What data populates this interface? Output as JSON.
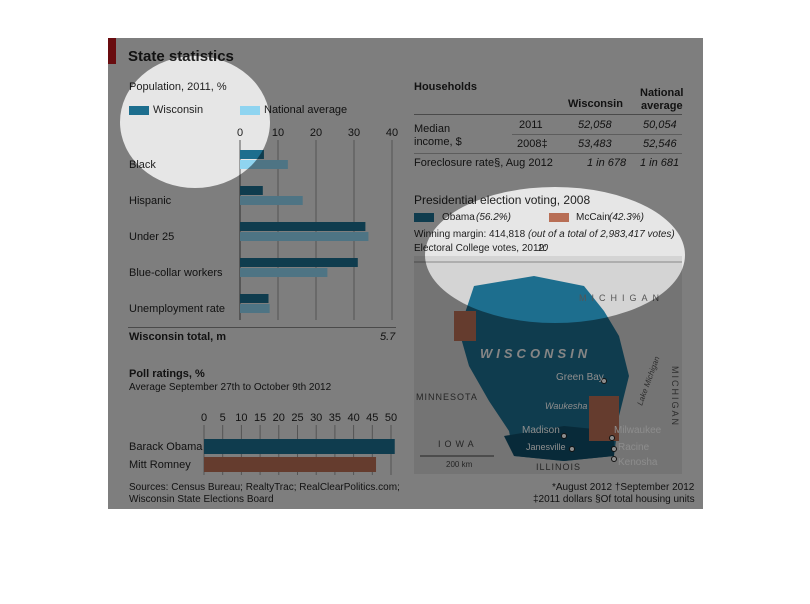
{
  "title": "State statistics",
  "population": {
    "subtitle": "Population, 2011, %",
    "legend": {
      "wisconsin": "Wisconsin",
      "national": "National average"
    },
    "ticks": [
      "0",
      "10",
      "20",
      "30",
      "40"
    ],
    "total_label": "Wisconsin total, m",
    "total_value": "5.7"
  },
  "households": {
    "title": "Households",
    "col_wisconsin": "Wisconsin",
    "col_national_1": "National",
    "col_national_2": "average",
    "median_label_1": "Median",
    "median_label_2": "income, $",
    "rows": [
      {
        "year": "2011",
        "wisconsin": "52,058",
        "national": "50,054"
      },
      {
        "year": "2008‡",
        "wisconsin": "53,483",
        "national": "52,546"
      }
    ],
    "foreclosure_label": "Foreclosure rate§, Aug 2012",
    "foreclosure_wisconsin": "1 in 678",
    "foreclosure_national": "1 in 681"
  },
  "election": {
    "title": "Presidential election voting, 2008",
    "obama": "Obama",
    "obama_pct": "(56.2%)",
    "mccain": "McCain",
    "mccain_pct": "(42.3%)",
    "margin": "Winning margin: 414,818",
    "margin_note": "(out of a total of 2,983,417 votes)",
    "college": "Electoral College votes, 2012:",
    "college_value": "10"
  },
  "map": {
    "lake_superior": "MICHIGAN",
    "state": "WISCONSIN",
    "minnesota": "MINNESOTA",
    "iowa": "IOWA",
    "illinois": "ILLINOIS",
    "lake_michigan": "Lake Michigan",
    "michigan_side": "MICHIGAN",
    "scale": "200 km",
    "cities": [
      "Green Bay",
      "Waukesha",
      "Madison",
      "Milwaukee",
      "Janesville",
      "Racine",
      "Kenosha"
    ]
  },
  "poll": {
    "title": "Poll ratings, %",
    "subtitle": "Average September 27th to October 9th 2012",
    "ticks": [
      "0",
      "5",
      "10",
      "15",
      "20",
      "25",
      "30",
      "35",
      "40",
      "45",
      "50"
    ]
  },
  "footer": {
    "sources_1": "Sources: Census Bureau; RealtyTrac; RealClearPolitics.com;",
    "sources_2": "Wisconsin State Elections Board",
    "note_1": "*August 2012   †September 2012",
    "note_2": "‡2011 dollars   §Of total housing units"
  },
  "colors": {
    "wisconsin": "#1d6e8e",
    "national": "#8fd4f0",
    "obama": "#1d6e8e",
    "mccain": "#b86e55",
    "panel": "#e6e6e6",
    "accent": "#c0161d"
  },
  "chart_data": [
    {
      "type": "bar",
      "title": "Population, 2011, %",
      "categories": [
        "Black",
        "Hispanic",
        "Under 25",
        "Blue-collar workers",
        "Unemployment rate"
      ],
      "series": [
        {
          "name": "Wisconsin",
          "values": [
            6.3,
            6.0,
            33.0,
            31.0,
            7.5
          ]
        },
        {
          "name": "National average",
          "values": [
            12.6,
            16.5,
            33.8,
            23.0,
            7.8
          ]
        }
      ],
      "xlim": [
        0,
        40
      ],
      "orientation": "horizontal",
      "legend": "top"
    },
    {
      "type": "bar",
      "title": "Poll ratings, %",
      "subtitle": "Average September 27th to October 9th 2012",
      "categories": [
        "Barack Obama",
        "Mitt Romney"
      ],
      "values": [
        51.0,
        46.0
      ],
      "xlim": [
        0,
        50
      ],
      "orientation": "horizontal"
    }
  ]
}
